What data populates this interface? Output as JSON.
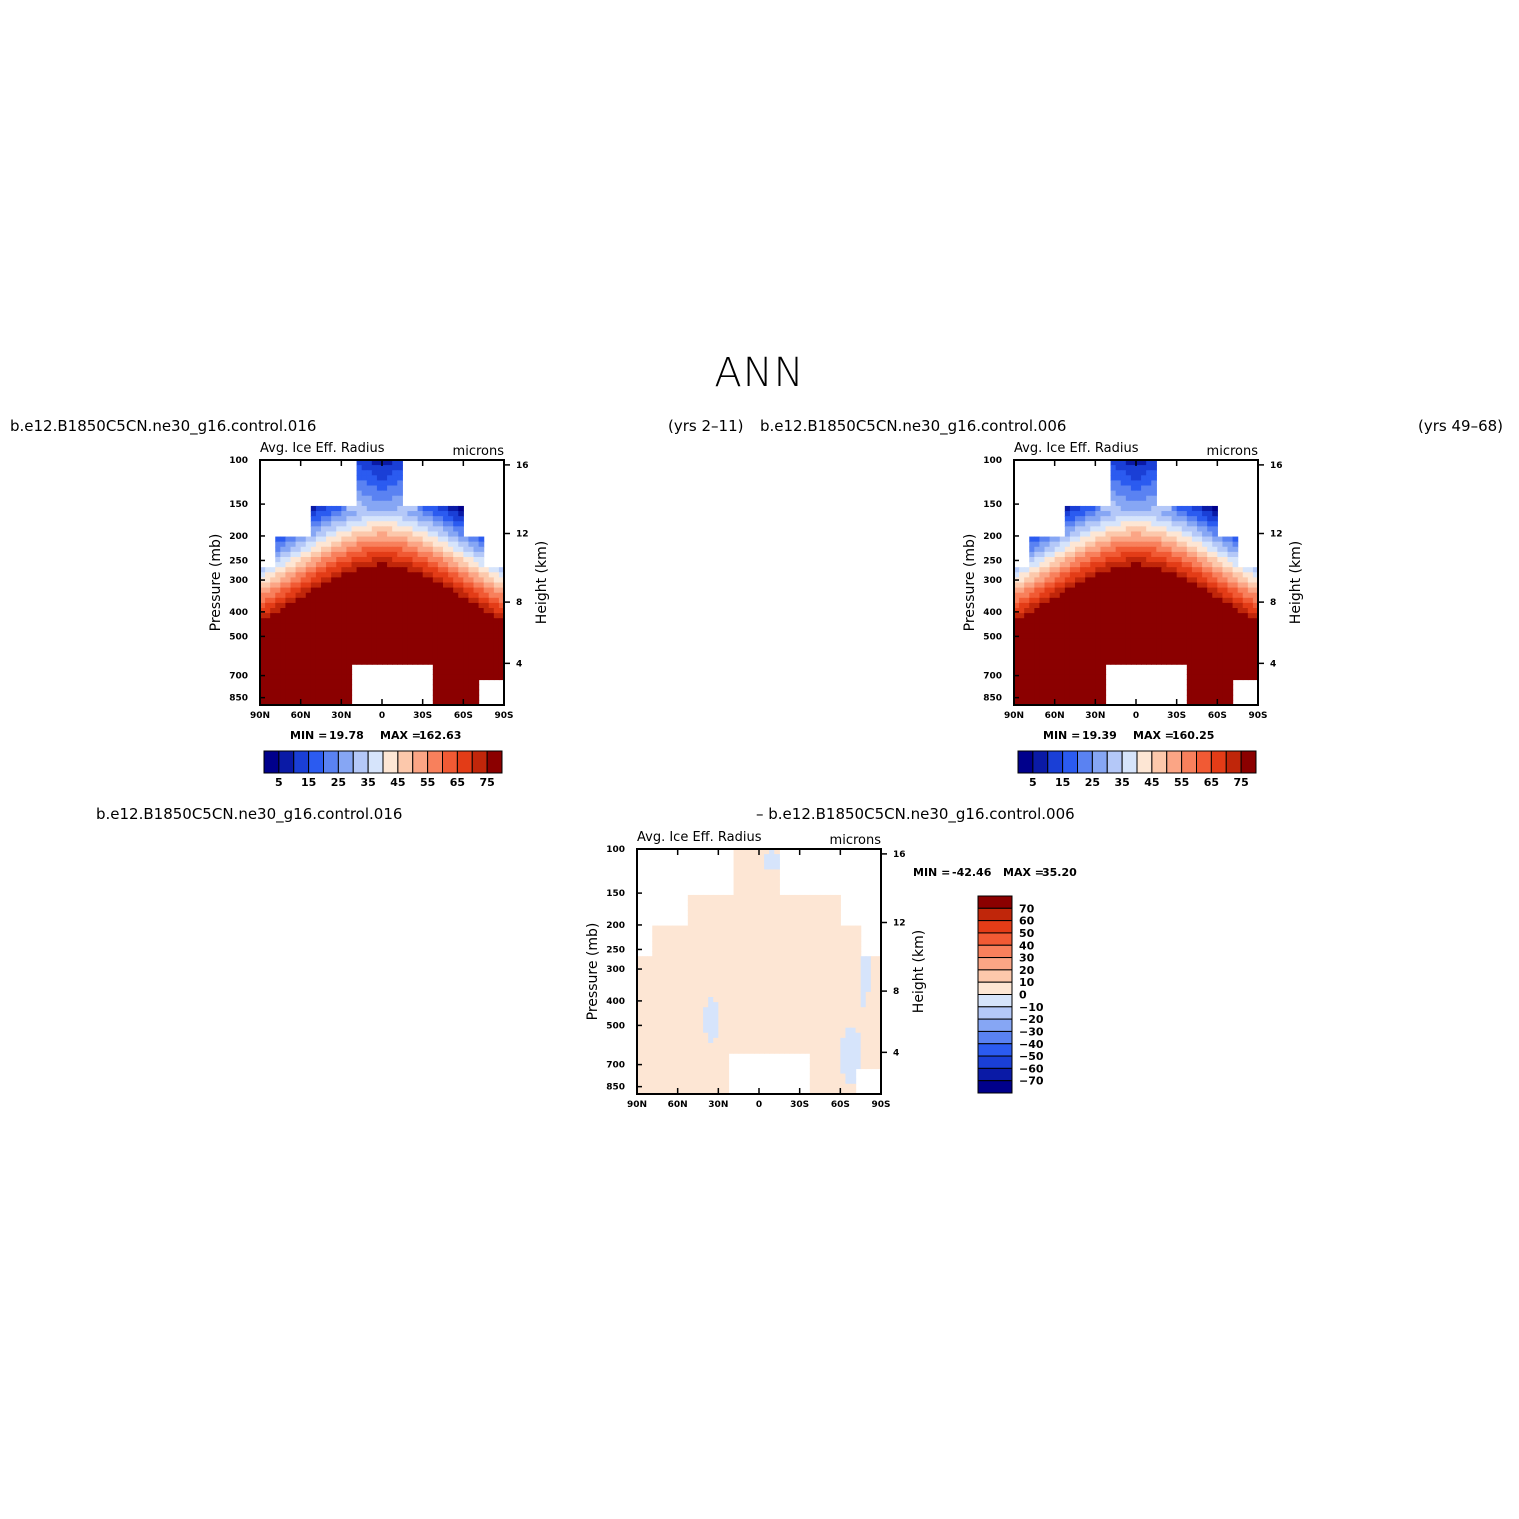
{
  "title": "ANN",
  "panels_header": {
    "left_case": "b.e12.B1850C5CN.ne30_g16.control.016",
    "left_years": "(yrs 2–11)",
    "right_case": "b.e12.B1850C5CN.ne30_g16.control.006",
    "right_years": "(yrs 49–68)"
  },
  "diff_header": {
    "left": "b.e12.B1850C5CN.ne30_g16.control.016",
    "right": "– b.e12.B1850C5CN.ne30_g16.control.006"
  },
  "colors": {
    "abs_levels": [
      "#00008b",
      "#0a1aa6",
      "#1a3fd6",
      "#2b5bf0",
      "#5a82f2",
      "#86a6f4",
      "#b4c8f8",
      "#d6e4fb",
      "#fde6d4",
      "#fcc8ab",
      "#fba585",
      "#f8805c",
      "#f15a34",
      "#e33c17",
      "#c0260a",
      "#8b0000"
    ],
    "diff_levels": [
      "#00008b",
      "#0a1aa6",
      "#1a3fd6",
      "#2b5bf0",
      "#5a82f2",
      "#86a6f4",
      "#b4c8f8",
      "#d6e4fb",
      "#fde6d4",
      "#fcc8ab",
      "#fba585",
      "#f8805c",
      "#f15a34",
      "#e33c17",
      "#c0260a",
      "#8b0000"
    ]
  },
  "chart_data": [
    {
      "type": "heatmap",
      "title": "Avg. Ice Eff. Radius",
      "units": "microns",
      "xlabel": "",
      "ylabel": "Pressure (mb)",
      "y2label": "Height (km)",
      "x_ticks": [
        "90N",
        "60N",
        "30N",
        "0",
        "30S",
        "60S",
        "90S"
      ],
      "y_ticks": [
        "100",
        "150",
        "200",
        "250",
        "300",
        "400",
        "500",
        "700",
        "850"
      ],
      "y2_ticks": [
        "16",
        "12",
        "8",
        "4"
      ],
      "min_label": "MIN =",
      "min_value": "19.78",
      "max_label": "MAX =",
      "max_value": "162.63",
      "colorbar_labels": [
        "5",
        "15",
        "25",
        "35",
        "45",
        "55",
        "65",
        "75"
      ]
    },
    {
      "type": "heatmap",
      "title": "Avg. Ice Eff. Radius",
      "units": "microns",
      "xlabel": "",
      "ylabel": "Pressure (mb)",
      "y2label": "Height (km)",
      "x_ticks": [
        "90N",
        "60N",
        "30N",
        "0",
        "30S",
        "60S",
        "90S"
      ],
      "y_ticks": [
        "100",
        "150",
        "200",
        "250",
        "300",
        "400",
        "500",
        "700",
        "850"
      ],
      "y2_ticks": [
        "16",
        "12",
        "8",
        "4"
      ],
      "min_label": "MIN =",
      "min_value": "19.39",
      "max_label": "MAX =",
      "max_value": "160.25",
      "colorbar_labels": [
        "5",
        "15",
        "25",
        "35",
        "45",
        "55",
        "65",
        "75"
      ]
    },
    {
      "type": "heatmap",
      "title": "Avg. Ice Eff. Radius",
      "units": "microns",
      "xlabel": "",
      "ylabel": "Pressure (mb)",
      "y2label": "Height (km)",
      "x_ticks": [
        "90N",
        "60N",
        "30N",
        "0",
        "30S",
        "60S",
        "90S"
      ],
      "y_ticks": [
        "100",
        "150",
        "200",
        "250",
        "300",
        "400",
        "500",
        "700",
        "850"
      ],
      "y2_ticks": [
        "16",
        "12",
        "8",
        "4"
      ],
      "min_label": "MIN =",
      "min_value": "-42.46",
      "max_label": "MAX =",
      "max_value": "35.20",
      "colorbar_labels": [
        "70",
        "60",
        "50",
        "40",
        "30",
        "20",
        "10",
        "0",
        "−10",
        "−20",
        "−30",
        "−40",
        "−50",
        "−60",
        "−70"
      ]
    }
  ]
}
